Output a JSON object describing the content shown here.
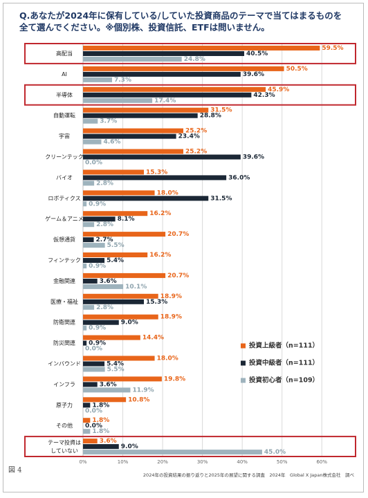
{
  "chart_data": {
    "type": "hbar",
    "title": "Q.あなたが2024年に保有している/していた投資商品のテーマで当てはまるものを全て選んでください。※個別株、投資信託、ETFは問いません。",
    "figure_label": "図 4",
    "source": "2024年の投資結果の振り返りと2025年の展望に関する調査　2024年　Global X Japan株式会社　調べ",
    "categories": [
      "高配当",
      "AI",
      "半導体",
      "自動運転",
      "宇宙",
      "クリーンテック",
      "バイオ",
      "ロボティクス",
      "ゲーム＆アニメ",
      "仮想通貨",
      "フィンテック",
      "金融関連",
      "医療・福祉",
      "防衛関連",
      "防災関連",
      "インバウンド",
      "インフラ",
      "原子力",
      "その他",
      "テーマ投資は\nしていない"
    ],
    "highlight_categories": [
      0,
      2,
      19
    ],
    "series": [
      {
        "name": "投資上級者（n=111）",
        "color": "#e8651a",
        "values": [
          59.5,
          50.5,
          45.9,
          31.5,
          25.2,
          25.2,
          15.3,
          18.0,
          16.2,
          20.7,
          16.2,
          20.7,
          18.9,
          18.9,
          14.4,
          18.0,
          19.8,
          10.8,
          1.8,
          3.6
        ],
        "value_labels": [
          "59.5%",
          "50.5%",
          "45.9%",
          "31.5%",
          "25.2%",
          "25.2%",
          "15.3%",
          "18.0%",
          "16.2%",
          "20.7%",
          "16.2%",
          "20.7%",
          "18.9%",
          "18.9%",
          "14.4%",
          "18.0%",
          "19.8%",
          "10.8%",
          "1.8%",
          "3.6%"
        ]
      },
      {
        "name": "投資中級者（n=111）",
        "color": "#1b2735",
        "values": [
          40.5,
          39.6,
          42.3,
          28.8,
          23.4,
          39.6,
          36.0,
          31.5,
          8.1,
          2.7,
          5.4,
          3.6,
          15.3,
          9.0,
          0.9,
          5.4,
          3.6,
          1.8,
          0.0,
          9.0
        ],
        "value_labels": [
          "40.5%",
          "39.6%",
          "42.3%",
          "28.8%",
          "23.4%",
          "39.6%",
          "36.0%",
          "31.5%",
          "8.1%",
          "2.7%",
          "5.4%",
          "3.6%",
          "15.3%",
          "9.0%",
          "0.9%",
          "5.4%",
          "3.6%",
          "1.8%",
          "0.0%",
          "9.0%"
        ]
      },
      {
        "name": "投資初心者（n=109）",
        "color": "#9eb3bd",
        "values": [
          24.8,
          7.3,
          17.4,
          3.7,
          4.6,
          0.0,
          2.8,
          0.9,
          2.8,
          5.5,
          0.9,
          10.1,
          2.8,
          0.9,
          0.0,
          5.5,
          11.9,
          0.0,
          1.8,
          45.0
        ],
        "value_labels": [
          "24.8%",
          "7.3%",
          "17.4%",
          "3.7%",
          "4.6%",
          "0.0%",
          "2.8%",
          "0.9%",
          "2.8%",
          "5.5%",
          "0.9%",
          "10.1%",
          "2.8%",
          "0.9%",
          "0.0%",
          "5.5%",
          "11.9%",
          "0.0%",
          "1.8%",
          "45.0%"
        ]
      }
    ],
    "xlim": [
      0,
      65
    ],
    "xticks": [
      {
        "value": 0,
        "label": "0%"
      },
      {
        "value": 10,
        "label": "10%"
      },
      {
        "value": 20,
        "label": "20%"
      },
      {
        "value": 30,
        "label": "30%"
      },
      {
        "value": 40,
        "label": "40%"
      },
      {
        "value": 50,
        "label": "50%"
      },
      {
        "value": 60,
        "label": "60%"
      }
    ],
    "grid": true,
    "legend": "right"
  }
}
